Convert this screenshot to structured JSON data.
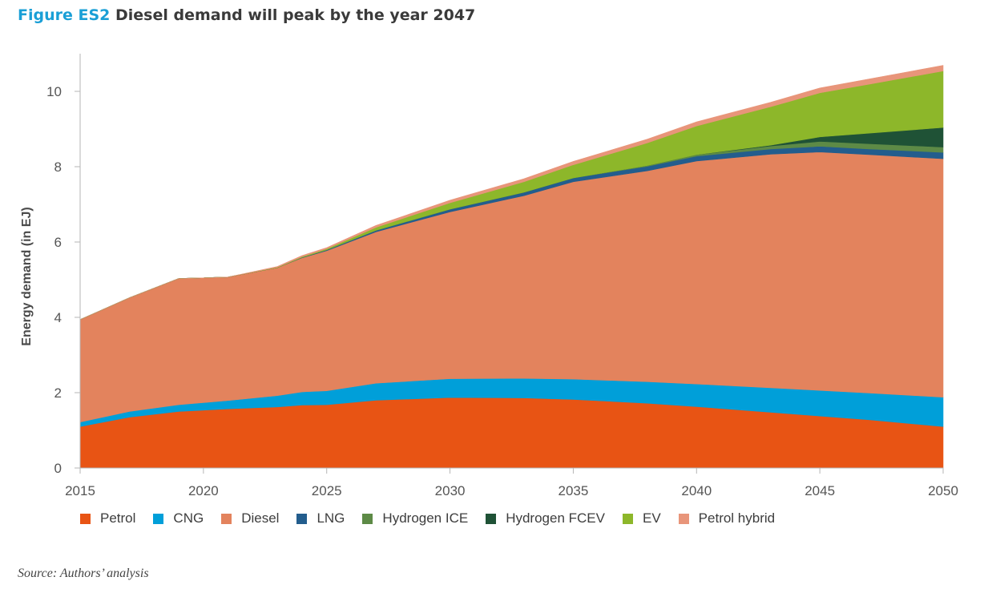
{
  "figure": {
    "label": "Figure ES2",
    "title": "Diesel demand will peak by the year 2047",
    "source": "Source: Authors’ analysis"
  },
  "chart_data": {
    "type": "area",
    "stacked": true,
    "ylabel": "Energy demand (in EJ)",
    "xlim": [
      2015,
      2050
    ],
    "ylim": [
      0,
      11
    ],
    "x_ticks": [
      2015,
      2020,
      2025,
      2030,
      2035,
      2040,
      2045,
      2050
    ],
    "y_ticks": [
      0,
      2,
      4,
      6,
      8,
      10
    ],
    "grid": false,
    "legend_position": "bottom",
    "x": [
      2015,
      2017,
      2019,
      2021,
      2023,
      2024,
      2025,
      2027,
      2030,
      2033,
      2035,
      2038,
      2040,
      2043,
      2045,
      2047,
      2050
    ],
    "series": [
      {
        "name": "Petrol",
        "color": "#e85414",
        "values": [
          1.1,
          1.35,
          1.5,
          1.57,
          1.62,
          1.67,
          1.68,
          1.8,
          1.87,
          1.86,
          1.82,
          1.72,
          1.63,
          1.48,
          1.38,
          1.28,
          1.1
        ]
      },
      {
        "name": "CNG",
        "color": "#009fd9",
        "values": [
          0.12,
          0.15,
          0.18,
          0.22,
          0.3,
          0.35,
          0.37,
          0.45,
          0.5,
          0.52,
          0.54,
          0.57,
          0.6,
          0.65,
          0.68,
          0.71,
          0.78
        ]
      },
      {
        "name": "Diesel",
        "color": "#e3835d",
        "values": [
          2.72,
          3.02,
          3.35,
          3.28,
          3.4,
          3.56,
          3.72,
          4.02,
          4.43,
          4.85,
          5.24,
          5.6,
          5.92,
          6.2,
          6.33,
          6.33,
          6.33
        ]
      },
      {
        "name": "LNG",
        "color": "#235d8d",
        "values": [
          0,
          0,
          0,
          0,
          0,
          0.01,
          0.02,
          0.04,
          0.07,
          0.09,
          0.1,
          0.12,
          0.13,
          0.14,
          0.15,
          0.15,
          0.17
        ]
      },
      {
        "name": "Hydrogen ICE",
        "color": "#5d8a46",
        "values": [
          0,
          0,
          0,
          0,
          0,
          0,
          0,
          0,
          0,
          0,
          0,
          0.02,
          0.04,
          0.08,
          0.13,
          0.14,
          0.14
        ]
      },
      {
        "name": "Hydrogen FCEV",
        "color": "#1f5236",
        "values": [
          0,
          0,
          0,
          0,
          0,
          0,
          0,
          0,
          0,
          0,
          0,
          0,
          0,
          0.02,
          0.12,
          0.28,
          0.52
        ]
      },
      {
        "name": "EV",
        "color": "#8db72a",
        "values": [
          0,
          0,
          0,
          0,
          0.01,
          0.02,
          0.03,
          0.08,
          0.17,
          0.28,
          0.35,
          0.6,
          0.76,
          1.02,
          1.17,
          1.3,
          1.5
        ]
      },
      {
        "name": "Petrol hybrid",
        "color": "#e8957a",
        "values": [
          0,
          0,
          0,
          0,
          0.02,
          0.03,
          0.03,
          0.05,
          0.07,
          0.08,
          0.09,
          0.1,
          0.11,
          0.12,
          0.13,
          0.14,
          0.15
        ]
      }
    ]
  }
}
